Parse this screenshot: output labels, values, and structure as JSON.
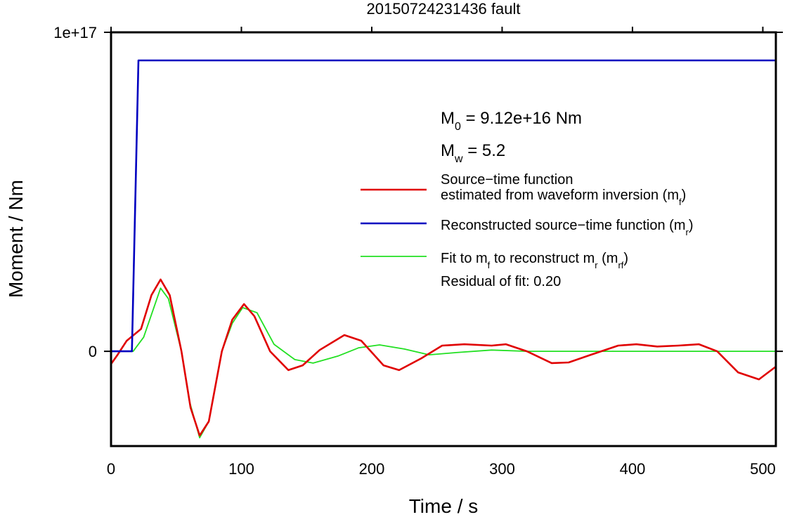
{
  "chart_data": {
    "type": "line",
    "title": "20150724231436 fault",
    "x_label": "Time / s",
    "y_label": "Moment / Nm",
    "xlim": [
      0,
      510
    ],
    "ylim": [
      -2.97e+16,
      1e+17
    ],
    "xticks": [
      0,
      100,
      200,
      300,
      400,
      500
    ],
    "yticks": [
      0,
      {
        "value": 1e+17,
        "label": "1e+17"
      }
    ],
    "annotations": [
      [
        "M",
        {
          "sub": "0"
        },
        " = 9.12e+16 Nm"
      ],
      [
        "M",
        {
          "sub": "w"
        },
        " = 5.2"
      ],
      [
        "Residual of fit: 0.20"
      ]
    ],
    "series": [
      {
        "name": [
          [
            "Source−time function"
          ],
          [
            "estimated from waveform inversion (m",
            {
              "sub": "f"
            },
            ")"
          ]
        ],
        "color": "#e00000",
        "x": [
          0,
          5,
          12,
          23,
          31,
          38,
          45,
          54,
          61,
          68,
          75,
          85,
          93,
          102,
          110,
          122,
          136,
          147,
          160,
          179,
          192,
          209,
          221,
          238,
          254,
          271,
          292,
          303,
          319,
          338,
          351,
          368,
          389,
          403,
          419,
          435,
          451,
          465,
          481,
          497,
          510
        ],
        "values": [
          -4000000000000000.0,
          -1100000000000000.0,
          3300000000000000.0,
          7000000000000000.0,
          1.76e+16,
          2.25e+16,
          1.76e+16,
          0,
          -1.76e+16,
          -2.64e+16,
          -2.2e+16,
          0,
          9900000000000000.0,
          1.48e+16,
          1.1e+16,
          0,
          -5900000000000000.0,
          -4400000000000000.0,
          400000000000000.0,
          5100000000000000.0,
          3300000000000000.0,
          -4400000000000000.0,
          -5900000000000000.0,
          -2200000000000000.0,
          1800000000000000.0,
          2200000000000000.0,
          1800000000000000.0,
          2200000000000000.0,
          0,
          -3700000000000000.0,
          -3500000000000000.0,
          -1100000000000000.0,
          1800000000000000.0,
          2200000000000000.0,
          1500000000000000.0,
          1800000000000000.0,
          2200000000000000.0,
          0,
          -6600000000000000.0,
          -8800000000000000.0,
          -4800000000000000.0
        ]
      },
      {
        "name": [
          [
            "Reconstructed source−time function (m",
            {
              "sub": "r"
            },
            ")"
          ]
        ],
        "color": "#0000c0",
        "x": [
          0,
          16,
          21,
          510
        ],
        "values": [
          0,
          0,
          9.12e+16,
          9.12e+16
        ]
      },
      {
        "name": [
          [
            "Fit to m",
            {
              "sub": "f"
            },
            " to reconstruct m",
            {
              "sub": "r"
            },
            " (m",
            {
              "sub": "rf"
            },
            ")"
          ]
        ],
        "color": "#22e022",
        "x": [
          0,
          17,
          25,
          38,
          44,
          54,
          60,
          68,
          75,
          85,
          93,
          101,
          112,
          125,
          141,
          155,
          174,
          190,
          206,
          225,
          244,
          265,
          292,
          319,
          510
        ],
        "values": [
          0,
          0,
          4400000000000000.0,
          1.98e+16,
          1.65e+16,
          0,
          -1.54e+16,
          -2.71e+16,
          -2.2e+16,
          0,
          8800000000000000.0,
          1.37e+16,
          1.21e+16,
          2200000000000000.0,
          -2600000000000000.0,
          -3700000000000000.0,
          -1500000000000000.0,
          1100000000000000.0,
          2000000000000000.0,
          700000000000000.0,
          -1100000000000000.0,
          -400000000000000.0,
          400000000000000.0,
          0,
          0
        ]
      }
    ]
  }
}
